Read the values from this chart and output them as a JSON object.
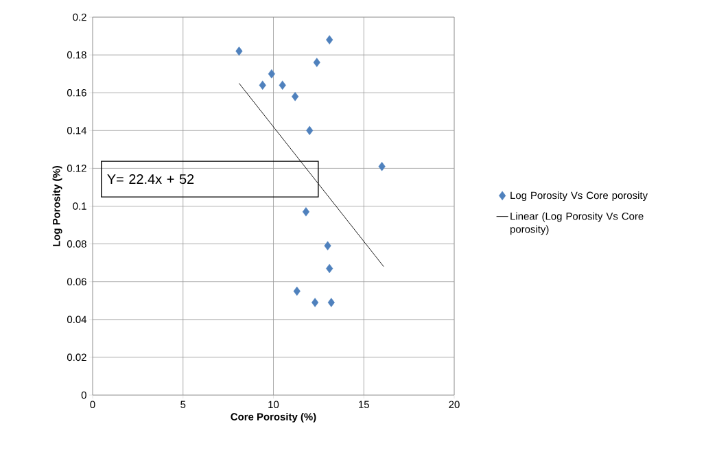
{
  "chart_data": {
    "type": "scatter",
    "xlabel": "Core Porosity  (%)",
    "ylabel": "Log Porosity (%)",
    "xlim": [
      0,
      20
    ],
    "xticks": [
      0,
      5,
      10,
      15,
      20
    ],
    "ylim": [
      0,
      0.2
    ],
    "yticks": [
      0,
      0.02,
      0.04,
      0.06,
      0.08,
      0.1,
      0.12,
      0.14,
      0.16,
      0.18,
      0.2
    ],
    "grid": true,
    "legend": "right",
    "marker": "diamond",
    "annotations": [
      "Y= 22.4x + 52"
    ],
    "series": [
      {
        "name": "Log Porosity  Vs Core porosity",
        "color": "#4f81bd",
        "x": [
          8.1,
          9.4,
          9.9,
          10.5,
          11.2,
          12.0,
          12.4,
          13.1,
          16.0,
          11.8,
          13.0,
          13.1,
          11.3,
          12.3,
          13.2
        ],
        "values": [
          0.182,
          0.164,
          0.17,
          0.164,
          0.158,
          0.14,
          0.176,
          0.188,
          0.121,
          0.097,
          0.079,
          0.067,
          0.055,
          0.049,
          0.049
        ]
      },
      {
        "name": "Linear (Log Porosity  Vs Core porosity)",
        "type": "line",
        "color": "#000000",
        "marker": "none",
        "x": [
          8.1,
          16.1
        ],
        "values": [
          0.165,
          0.068
        ]
      }
    ]
  }
}
